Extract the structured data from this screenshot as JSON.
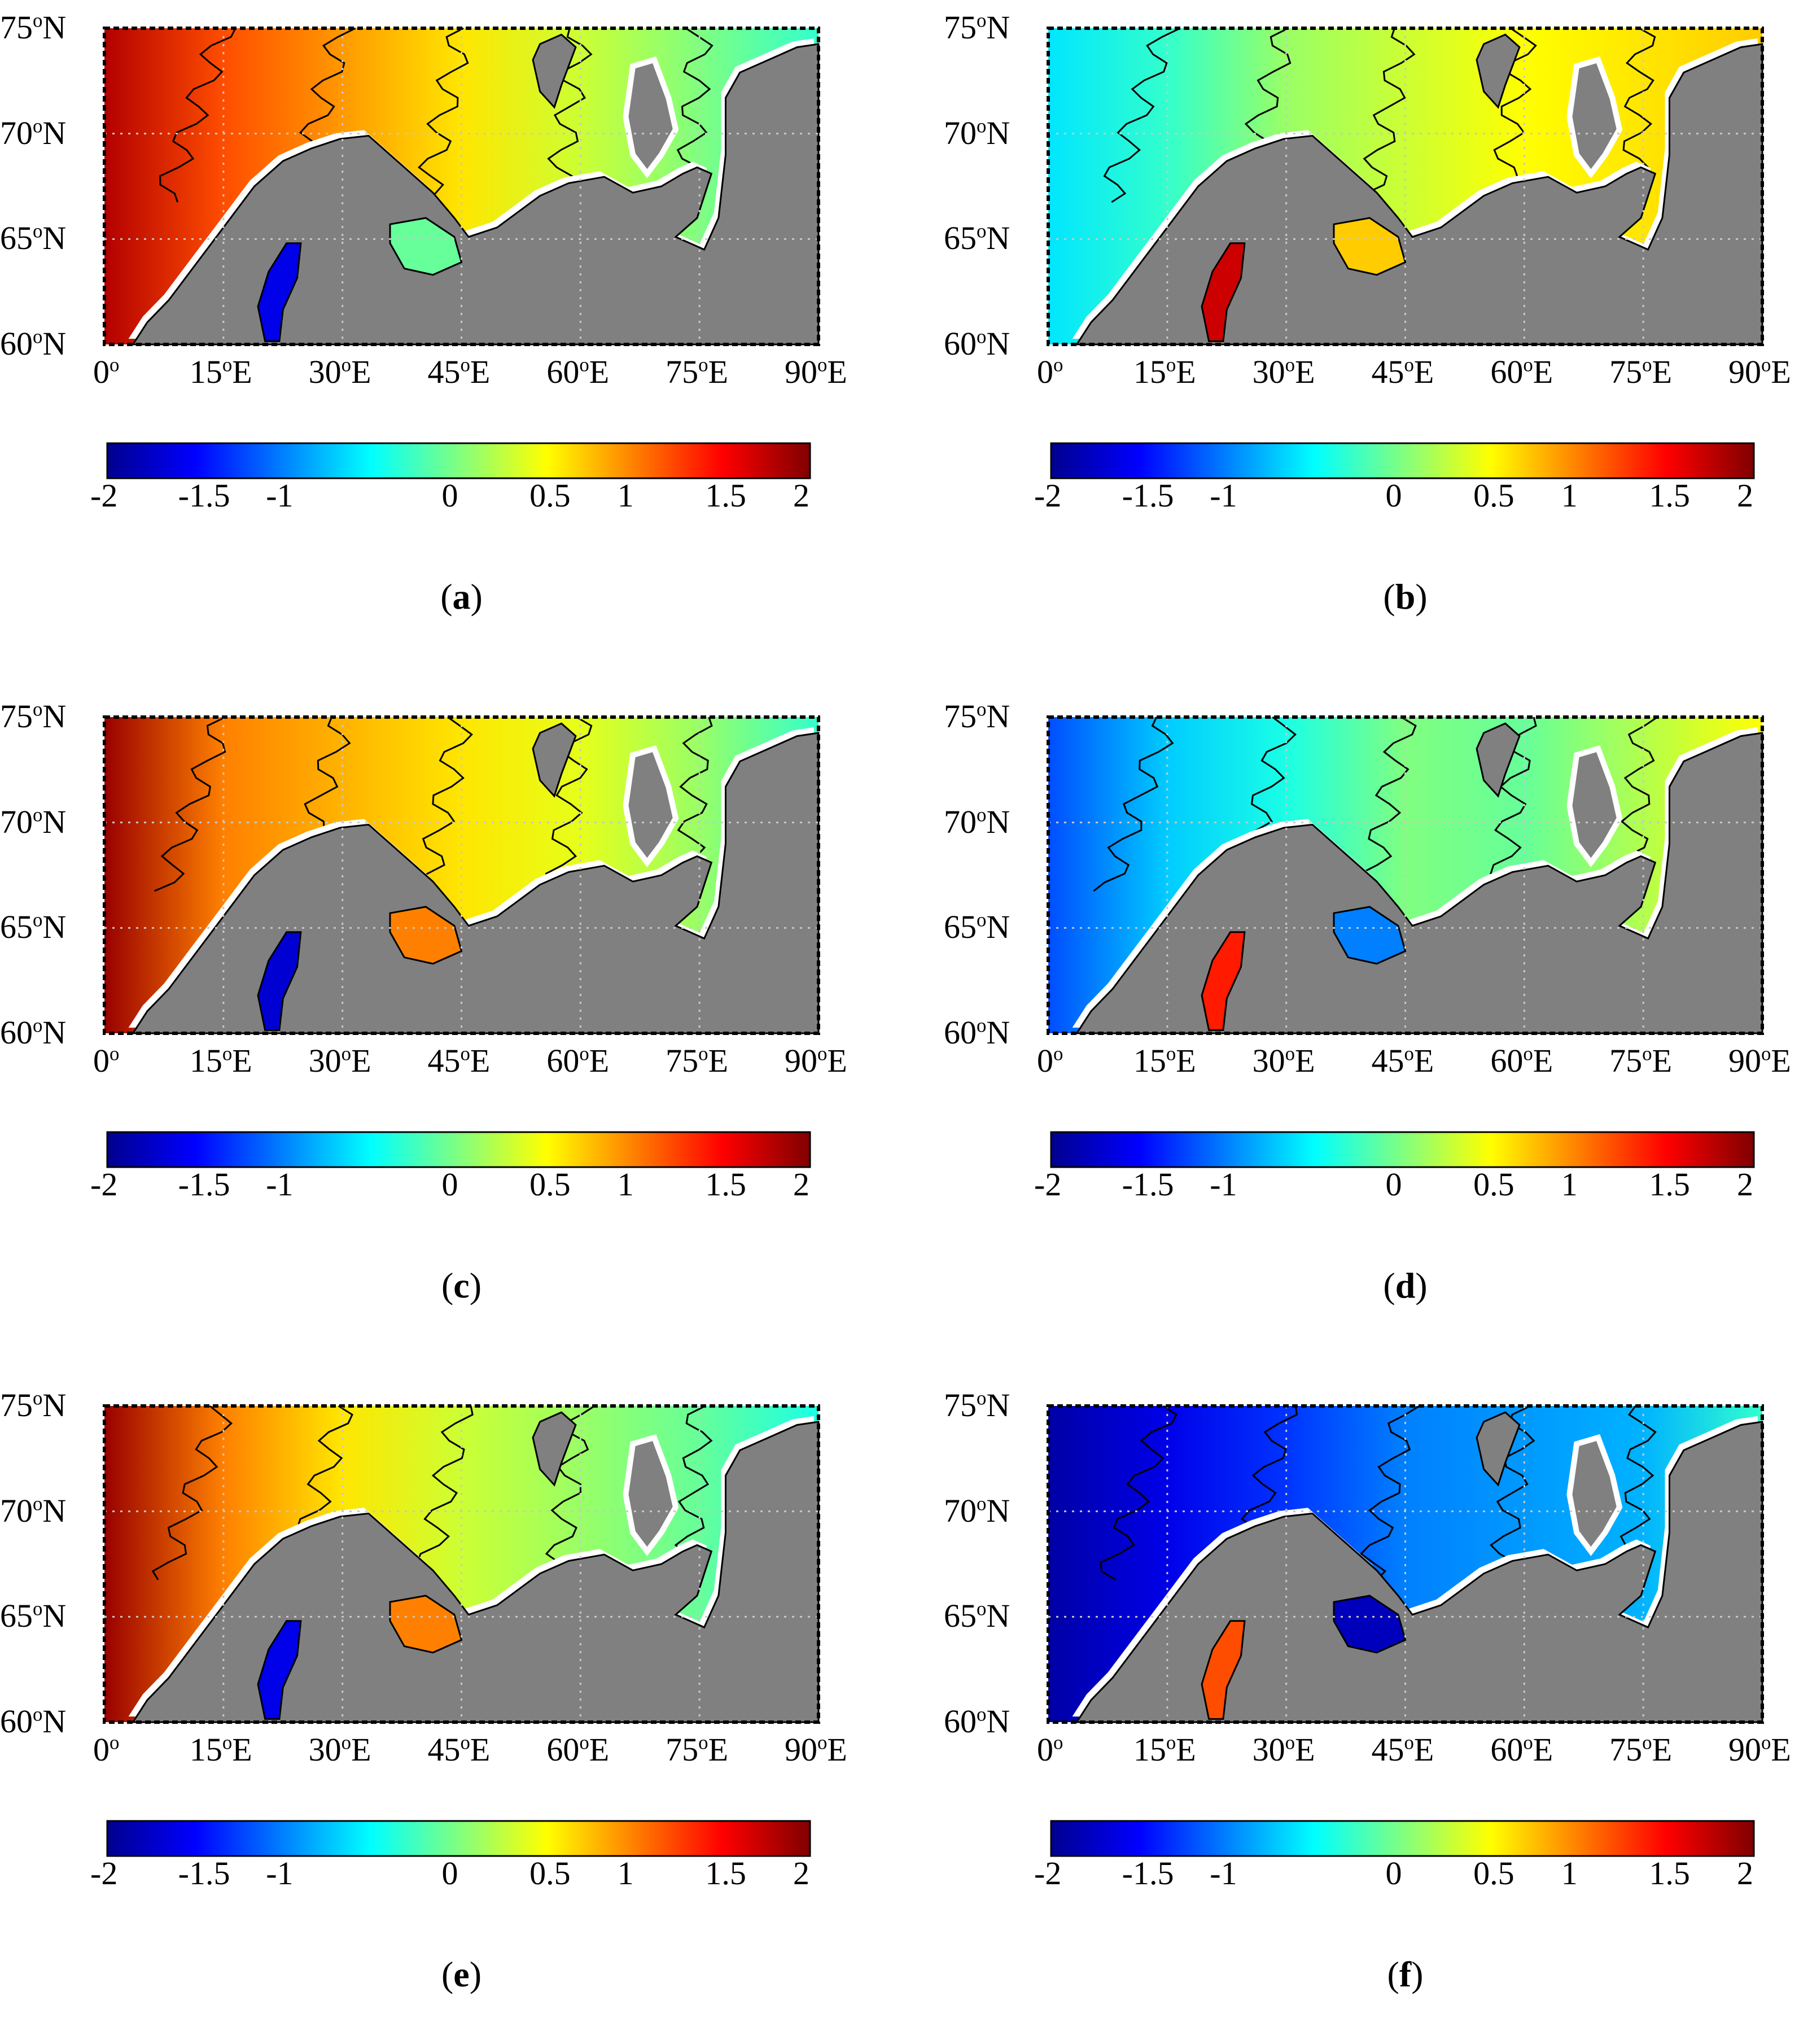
{
  "figure": {
    "colormap": [
      "#00008f",
      "#0000ff",
      "#0080ff",
      "#00ffff",
      "#80ff80",
      "#ffff00",
      "#ff8000",
      "#ff0000",
      "#800000"
    ],
    "land_color": "#808080",
    "ice_color": "#ffffff",
    "lat_labels": [
      "75",
      "70",
      "65",
      "60"
    ],
    "lat_suffix": "N",
    "lon_labels": [
      "0",
      "15",
      "30",
      "45",
      "60",
      "75",
      "90"
    ],
    "lon_suffix": "E",
    "colorbar_ticks": [
      "-2",
      "-1.5",
      "-1",
      "0",
      "0.5",
      "1",
      "1.5",
      "2"
    ],
    "panels": [
      {
        "id": "a",
        "caption": "a",
        "sea_pattern": [
          1.8,
          1.2,
          0.9,
          0.6,
          0.3,
          0.0,
          -0.3
        ],
        "bay_value": -1.6,
        "white_sea_value": -0.1
      },
      {
        "id": "b",
        "caption": "b",
        "sea_pattern": [
          -0.6,
          -0.3,
          0.1,
          0.3,
          0.5,
          0.6,
          0.7
        ],
        "bay_value": 1.7,
        "white_sea_value": 0.7
      },
      {
        "id": "c",
        "caption": "c",
        "sea_pattern": [
          1.9,
          1.0,
          0.8,
          0.6,
          0.4,
          0.1,
          -0.3
        ],
        "bay_value": -1.7,
        "white_sea_value": 1.0
      },
      {
        "id": "d",
        "caption": "d",
        "sea_pattern": [
          -1.2,
          -0.7,
          -0.4,
          0.0,
          -0.1,
          0.2,
          0.5
        ],
        "bay_value": 1.4,
        "white_sea_value": -1.0
      },
      {
        "id": "e",
        "caption": "e",
        "sea_pattern": [
          1.9,
          1.0,
          0.6,
          0.3,
          0.1,
          -0.1,
          -0.4
        ],
        "bay_value": -1.6,
        "white_sea_value": 1.0
      },
      {
        "id": "f",
        "caption": "f",
        "sea_pattern": [
          -1.9,
          -1.6,
          -1.3,
          -1.0,
          -0.9,
          -0.8,
          -0.3
        ],
        "bay_value": 1.2,
        "white_sea_value": -1.8
      }
    ]
  }
}
